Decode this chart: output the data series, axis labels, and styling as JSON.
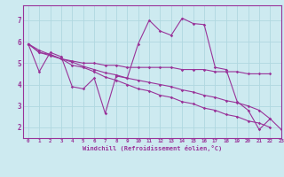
{
  "xlabel": "Windchill (Refroidissement éolien,°C)",
  "bg_color": "#cdeaf0",
  "line_color": "#993399",
  "grid_color": "#b0d8e0",
  "spine_color": "#993399",
  "xlim": [
    -0.5,
    23.0
  ],
  "ylim": [
    1.5,
    7.7
  ],
  "yticks": [
    2,
    3,
    4,
    5,
    6,
    7
  ],
  "xticks": [
    0,
    1,
    2,
    3,
    4,
    5,
    6,
    7,
    8,
    9,
    10,
    11,
    12,
    13,
    14,
    15,
    16,
    17,
    18,
    19,
    20,
    21,
    22,
    23
  ],
  "xtick_labels": [
    "0",
    "1",
    "2",
    "3",
    "4",
    "5",
    "6",
    "7",
    "8",
    "9",
    "10",
    "11",
    "12",
    "13",
    "14",
    "15",
    "16",
    "17",
    "18",
    "19",
    "20",
    "21",
    "22",
    "23"
  ],
  "series": [
    {
      "x": [
        0,
        1,
        2,
        3,
        4,
        5,
        6,
        7,
        8,
        9,
        10,
        11,
        12,
        13,
        14,
        15,
        16,
        17,
        18,
        19,
        20,
        21,
        22
      ],
      "y": [
        5.9,
        4.6,
        5.5,
        5.3,
        3.9,
        3.8,
        4.3,
        2.65,
        4.4,
        4.3,
        5.9,
        7.0,
        6.5,
        6.3,
        7.1,
        6.85,
        6.8,
        4.8,
        4.7,
        3.2,
        2.8,
        1.9,
        2.4
      ]
    },
    {
      "x": [
        0,
        1,
        2,
        3,
        4,
        5,
        6,
        7,
        8,
        9,
        10,
        11,
        12,
        13,
        14,
        15,
        16,
        17,
        18,
        19,
        20,
        21,
        22
      ],
      "y": [
        5.9,
        5.5,
        5.4,
        5.2,
        5.1,
        5.0,
        5.0,
        4.9,
        4.9,
        4.8,
        4.8,
        4.8,
        4.8,
        4.8,
        4.7,
        4.7,
        4.7,
        4.6,
        4.6,
        4.6,
        4.5,
        4.5,
        4.5
      ]
    },
    {
      "x": [
        0,
        1,
        2,
        3,
        4,
        5,
        6,
        7,
        8,
        9,
        10,
        11,
        12,
        13,
        14,
        15,
        16,
        17,
        18,
        19,
        20,
        21,
        22
      ],
      "y": [
        5.9,
        5.6,
        5.4,
        5.2,
        4.9,
        4.8,
        4.6,
        4.35,
        4.2,
        4.0,
        3.8,
        3.7,
        3.5,
        3.4,
        3.2,
        3.1,
        2.9,
        2.8,
        2.6,
        2.5,
        2.3,
        2.2,
        2.0
      ]
    },
    {
      "x": [
        0,
        1,
        2,
        3,
        4,
        5,
        6,
        7,
        8,
        9,
        10,
        11,
        12,
        13,
        14,
        15,
        16,
        17,
        18,
        19,
        20,
        21,
        22,
        23
      ],
      "y": [
        5.9,
        5.5,
        5.35,
        5.2,
        5.05,
        4.85,
        4.7,
        4.55,
        4.45,
        4.3,
        4.2,
        4.1,
        4.0,
        3.9,
        3.75,
        3.65,
        3.5,
        3.4,
        3.25,
        3.15,
        3.0,
        2.8,
        2.4,
        1.9
      ]
    }
  ]
}
